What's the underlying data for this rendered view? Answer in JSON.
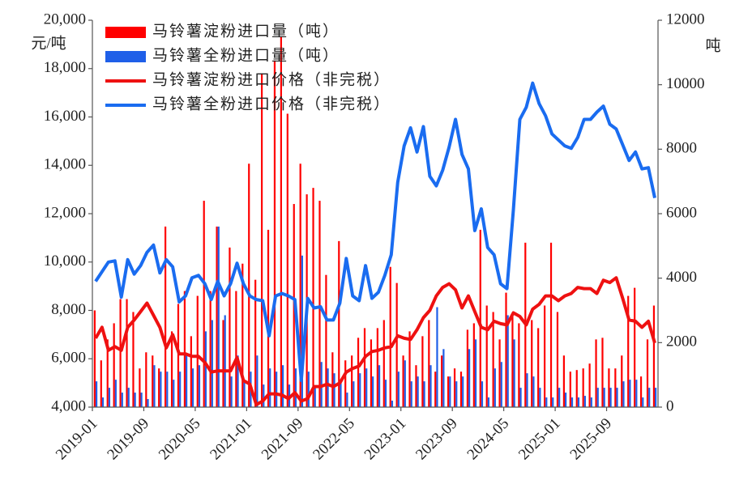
{
  "chart_data": {
    "type": "combo",
    "y_label": "元/吨",
    "y2_label": "吨",
    "categories": [
      "2019-01",
      null,
      null,
      null,
      null,
      null,
      null,
      null,
      "2019-09",
      null,
      null,
      null,
      null,
      null,
      null,
      null,
      "2020-05",
      null,
      null,
      null,
      null,
      null,
      null,
      null,
      "2021-01",
      null,
      null,
      null,
      null,
      null,
      null,
      null,
      "2021-09",
      null,
      null,
      null,
      null,
      null,
      null,
      null,
      "2022-05",
      null,
      null,
      null,
      null,
      null,
      null,
      null,
      "2023-01",
      null,
      null,
      null,
      null,
      null,
      null,
      null,
      "2023-09",
      null,
      null,
      null,
      null,
      null,
      null,
      null,
      "2024-05",
      null,
      null,
      null,
      null,
      null,
      null,
      null,
      "2025-01",
      null,
      null,
      null,
      null,
      null,
      null,
      null,
      "2025-09",
      null,
      null,
      null,
      null,
      null,
      null,
      null
    ],
    "ylim": [
      4000,
      20000
    ],
    "yticks": [
      {
        "value": 4000,
        "label": "4,000"
      },
      {
        "value": 6000,
        "label": "6,000"
      },
      {
        "value": 8000,
        "label": "8,000"
      },
      {
        "value": 10000,
        "label": "10,000"
      },
      {
        "value": 12000,
        "label": "12,000"
      },
      {
        "value": 14000,
        "label": "14,000"
      },
      {
        "value": 16000,
        "label": "16,000"
      },
      {
        "value": 18000,
        "label": "18,000"
      },
      {
        "value": 20000,
        "label": "20,000"
      }
    ],
    "y2lim": [
      0,
      12000
    ],
    "y2ticks": [
      0,
      2000,
      4000,
      6000,
      8000,
      10000,
      12000
    ],
    "legend": "upper-left",
    "series": [
      {
        "name": "马铃薯淀粉进口量（吨）",
        "type": "bar",
        "axis": "y2",
        "color": "#ff0000",
        "values": [
          3000,
          1450,
          2100,
          2600,
          3350,
          3350,
          2950,
          1200,
          1700,
          1600,
          1200,
          5600,
          2350,
          3200,
          3600,
          2200,
          3450,
          6400,
          3600,
          5600,
          2700,
          4950,
          3600,
          4450,
          7550,
          3950,
          10350,
          5500,
          10750,
          11500,
          9100,
          6300,
          7550,
          6600,
          6800,
          6400,
          4100,
          1700,
          5150,
          1450,
          1600,
          2150,
          2450,
          2100,
          2450,
          2700,
          4350,
          3850,
          1600,
          2350,
          1300,
          2200,
          2700,
          1100,
          1600,
          950,
          1200,
          1100,
          2400,
          2600,
          5500,
          3150,
          2950,
          2100,
          3550,
          2850,
          2600,
          5100,
          2700,
          2450,
          3150,
          5100,
          2950,
          1600,
          1100,
          1150,
          1200,
          1350,
          2100,
          2150,
          1200,
          1200,
          1600,
          3450,
          3700,
          950,
          2100,
          3150
        ]
      },
      {
        "name": "马铃薯全粉进口量（吨）",
        "type": "bar",
        "axis": "y2",
        "color": "#1f5fe8",
        "values": [
          800,
          300,
          600,
          850,
          450,
          600,
          450,
          450,
          250,
          1300,
          1100,
          1100,
          850,
          1100,
          1600,
          1200,
          1300,
          2350,
          2700,
          5600,
          2850,
          950,
          1600,
          800,
          1100,
          1600,
          700,
          1200,
          1100,
          1300,
          700,
          1200,
          4700,
          1100,
          600,
          1400,
          1200,
          1050,
          800,
          450,
          800,
          1050,
          1200,
          950,
          1300,
          850,
          200,
          1100,
          1450,
          800,
          950,
          800,
          1300,
          3100,
          1800,
          950,
          800,
          950,
          1800,
          2100,
          800,
          300,
          1200,
          1400,
          2850,
          2100,
          600,
          1050,
          950,
          600,
          300,
          300,
          600,
          450,
          300,
          300,
          350,
          300,
          600,
          600,
          600,
          600,
          800,
          850,
          850,
          300,
          600,
          600
        ]
      },
      {
        "name": "马铃薯淀粉进口价格（非完税）",
        "type": "line",
        "axis": "y",
        "color": "#ee1111",
        "values": [
          6850,
          7300,
          6350,
          6500,
          6350,
          7300,
          7600,
          7950,
          8300,
          7800,
          7300,
          6450,
          7000,
          6200,
          6200,
          6100,
          6100,
          5850,
          5450,
          5500,
          5500,
          5500,
          6050,
          5100,
          4950,
          4100,
          4250,
          4550,
          4550,
          4500,
          4350,
          4600,
          4250,
          4350,
          4850,
          4850,
          4950,
          4850,
          5000,
          5450,
          5600,
          5700,
          6100,
          6300,
          6350,
          6450,
          6500,
          6950,
          6850,
          6800,
          7200,
          7700,
          8000,
          8600,
          8950,
          9100,
          8850,
          8100,
          8600,
          7950,
          7300,
          7200,
          7550,
          7450,
          7400,
          7900,
          7750,
          7400,
          8050,
          8250,
          8600,
          8600,
          8400,
          8600,
          8700,
          8950,
          8900,
          8900,
          8700,
          9250,
          9150,
          9350,
          8500,
          7600,
          7550,
          7300,
          7550,
          6650
        ]
      },
      {
        "name": "马铃薯全粉进口价格（非完税）",
        "type": "line",
        "axis": "y",
        "color": "#1a6cf0",
        "values": [
          9200,
          9600,
          10000,
          10050,
          8550,
          10100,
          9500,
          9850,
          10400,
          10700,
          9550,
          10100,
          9800,
          8350,
          8600,
          9350,
          9450,
          9100,
          8450,
          9200,
          8600,
          9100,
          9950,
          9100,
          8600,
          8450,
          8400,
          6950,
          8600,
          8700,
          8600,
          8450,
          5100,
          8500,
          8100,
          8150,
          7600,
          7600,
          8300,
          10150,
          8600,
          8400,
          9850,
          8500,
          8750,
          9450,
          10300,
          13300,
          14800,
          15550,
          14550,
          15600,
          13550,
          13150,
          13800,
          14750,
          15900,
          14450,
          13850,
          11300,
          12200,
          10600,
          10300,
          9100,
          8900,
          12150,
          15900,
          16400,
          17400,
          16550,
          16050,
          15300,
          15050,
          14800,
          14700,
          15150,
          15900,
          15900,
          16200,
          16450,
          15700,
          15500,
          14850,
          14200,
          14550,
          13850,
          13900,
          12650
        ]
      }
    ]
  }
}
